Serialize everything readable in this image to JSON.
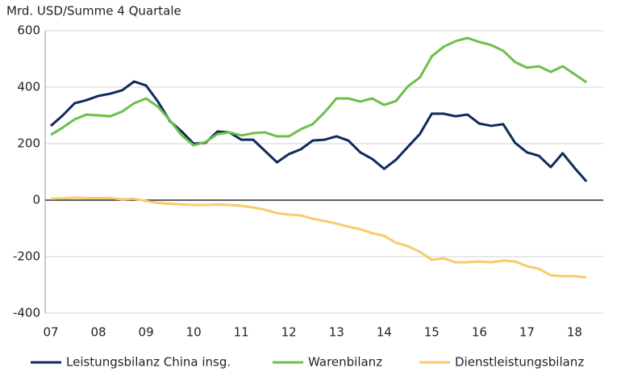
{
  "chart_data": {
    "type": "line",
    "y_axis_label": "Mrd. USD/Summe 4 Quartale",
    "categories": [
      "07",
      null,
      null,
      null,
      "08",
      null,
      null,
      null,
      "09",
      null,
      null,
      null,
      "10",
      null,
      null,
      null,
      "11",
      null,
      null,
      null,
      "12",
      null,
      null,
      null,
      "13",
      null,
      null,
      null,
      "14",
      null,
      null,
      null,
      "15",
      null,
      null,
      null,
      "16",
      null,
      null,
      null,
      "17",
      null,
      null,
      null,
      "18",
      null
    ],
    "series": [
      {
        "name": "Leistungsbilanz China insg.",
        "color": "#0f2a5c",
        "values": [
          263,
          300,
          343,
          354,
          369,
          377,
          389,
          420,
          406,
          349,
          280,
          243,
          200,
          203,
          243,
          240,
          214,
          214,
          174,
          134,
          163,
          180,
          211,
          214,
          226,
          211,
          169,
          146,
          111,
          143,
          189,
          234,
          306,
          306,
          297,
          303,
          271,
          263,
          269,
          203,
          169,
          157,
          117,
          166,
          114,
          66
        ]
      },
      {
        "name": "Warenbilanz",
        "color": "#6cc04a",
        "values": [
          231,
          257,
          286,
          303,
          300,
          297,
          314,
          343,
          360,
          331,
          283,
          229,
          194,
          206,
          234,
          240,
          229,
          237,
          240,
          226,
          226,
          251,
          269,
          311,
          360,
          360,
          349,
          360,
          337,
          351,
          403,
          434,
          509,
          543,
          563,
          574,
          560,
          549,
          529,
          489,
          469,
          474,
          454,
          474,
          446,
          417
        ]
      },
      {
        "name": "Dienstleistungsbilanz",
        "color": "#f7cc6a",
        "values": [
          5,
          6,
          9,
          7,
          7,
          7,
          3,
          5,
          -3,
          -10,
          -13,
          -15,
          -17,
          -17,
          -15,
          -17,
          -20,
          -26,
          -34,
          -46,
          -51,
          -54,
          -66,
          -74,
          -83,
          -94,
          -103,
          -117,
          -126,
          -151,
          -163,
          -183,
          -211,
          -206,
          -220,
          -220,
          -217,
          -220,
          -214,
          -217,
          -234,
          -243,
          -266,
          -269,
          -269,
          -274
        ]
      }
    ],
    "ylim": [
      -400,
      600
    ],
    "yticks": [
      -400,
      -200,
      0,
      200,
      400,
      600
    ],
    "grid": true,
    "legend": "bottom"
  }
}
